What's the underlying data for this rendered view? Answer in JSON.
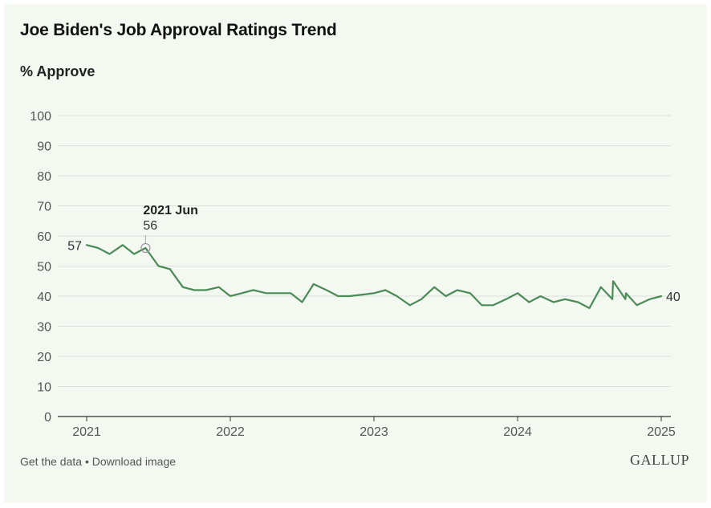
{
  "header": {
    "title": "Joe Biden's Job Approval Ratings Trend",
    "subtitle": "% Approve"
  },
  "footer": {
    "get_data": "Get the data",
    "separator": " • ",
    "download": "Download image",
    "logo": "GALLUP"
  },
  "chart_data": {
    "type": "line",
    "title": "Joe Biden's Job Approval Ratings Trend",
    "ylabel": "% Approve",
    "xlim": [
      2021.0,
      2025.0
    ],
    "ylim": [
      0,
      100
    ],
    "y_ticks": [
      0,
      10,
      20,
      30,
      40,
      50,
      60,
      70,
      80,
      90,
      100
    ],
    "x_ticks": [
      "2021",
      "2022",
      "2023",
      "2024",
      "2025"
    ],
    "grid": true,
    "line_color": "#4b8b57",
    "series": [
      {
        "points": [
          [
            2021.0,
            57
          ],
          [
            2021.08,
            56
          ],
          [
            2021.16,
            54
          ],
          [
            2021.25,
            57
          ],
          [
            2021.33,
            54
          ],
          [
            2021.41,
            56
          ],
          [
            2021.5,
            50
          ],
          [
            2021.58,
            49
          ],
          [
            2021.67,
            43
          ],
          [
            2021.75,
            42
          ],
          [
            2021.83,
            42
          ],
          [
            2021.92,
            43
          ],
          [
            2022.0,
            40
          ],
          [
            2022.08,
            41
          ],
          [
            2022.16,
            42
          ],
          [
            2022.25,
            41
          ],
          [
            2022.33,
            41
          ],
          [
            2022.42,
            41
          ],
          [
            2022.5,
            38
          ],
          [
            2022.58,
            44
          ],
          [
            2022.67,
            42
          ],
          [
            2022.75,
            40
          ],
          [
            2022.83,
            40
          ],
          [
            2022.92,
            40.5
          ],
          [
            2023.0,
            41
          ],
          [
            2023.08,
            42
          ],
          [
            2023.16,
            40
          ],
          [
            2023.25,
            37
          ],
          [
            2023.33,
            39
          ],
          [
            2023.42,
            43
          ],
          [
            2023.5,
            40
          ],
          [
            2023.58,
            42
          ],
          [
            2023.67,
            41
          ],
          [
            2023.75,
            37
          ],
          [
            2023.83,
            37
          ],
          [
            2023.92,
            39
          ],
          [
            2024.0,
            41
          ],
          [
            2024.08,
            38
          ],
          [
            2024.16,
            40
          ],
          [
            2024.25,
            38
          ],
          [
            2024.33,
            39
          ],
          [
            2024.42,
            38
          ],
          [
            2024.5,
            36
          ],
          [
            2024.58,
            43
          ],
          [
            2024.66,
            39
          ],
          [
            2024.665,
            45
          ],
          [
            2024.75,
            39
          ],
          [
            2024.755,
            41
          ],
          [
            2024.83,
            37
          ],
          [
            2024.92,
            39
          ],
          [
            2025.0,
            40
          ]
        ]
      }
    ],
    "annotations": [
      {
        "x": 2021.41,
        "y": 56,
        "label": "2021 Jun",
        "value": "56"
      }
    ],
    "start_label": "57",
    "end_label": "40"
  }
}
